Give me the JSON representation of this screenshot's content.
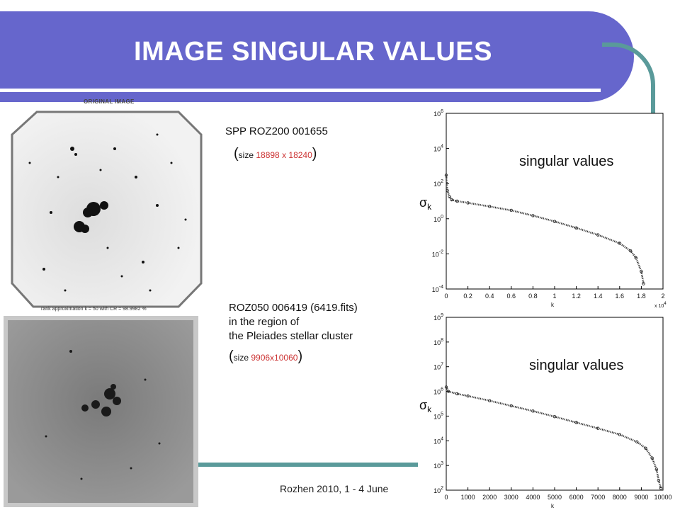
{
  "slide": {
    "title": "IMAGE SINGULAR VALUES",
    "footer": "Rozhen 2010, 1 - 4 June"
  },
  "image1": {
    "label": "ORIGINAL IMAGE",
    "caption": "rank approximation k = 50 with CR = 98.9982 %",
    "name": "SPP ROZ200 001655",
    "size_prefix": "size ",
    "size_value": "18898 x 18240"
  },
  "image2": {
    "name": "ROZ050 006419 (6419.fits)",
    "line2": "in the region of",
    "line3": "the Pleiades stellar cluster",
    "size_prefix": "size ",
    "size_value": "9906x10060"
  },
  "colors": {
    "title_bg": "#6666cc",
    "accent": "#5a9a9a",
    "size_text": "#cc3333"
  },
  "chart_data": [
    {
      "type": "scatter",
      "label": "singular values",
      "ylabel": "σk",
      "xlabel": "k",
      "x_multiplier": "x 10^4",
      "y_scale": "log",
      "xlim": [
        0,
        2
      ],
      "ylim_exp": [
        -4,
        6
      ],
      "x_ticks": [
        "0",
        "0.2",
        "0.4",
        "0.6",
        "0.8",
        "1",
        "1.2",
        "1.4",
        "1.6",
        "1.8",
        "2"
      ],
      "y_ticks": [
        "10^6",
        "10^4",
        "10^2",
        "10^0",
        "10^-2",
        "10^-4"
      ],
      "points": [
        [
          0.0,
          300
        ],
        [
          0.01,
          40
        ],
        [
          0.03,
          18
        ],
        [
          0.05,
          12
        ],
        [
          0.1,
          10
        ],
        [
          0.2,
          8
        ],
        [
          0.4,
          5
        ],
        [
          0.6,
          3
        ],
        [
          0.8,
          1.5
        ],
        [
          1.0,
          0.7
        ],
        [
          1.2,
          0.3
        ],
        [
          1.4,
          0.12
        ],
        [
          1.6,
          0.04
        ],
        [
          1.7,
          0.015
        ],
        [
          1.75,
          0.006
        ],
        [
          1.8,
          0.001
        ],
        [
          1.82,
          0.0002
        ]
      ]
    },
    {
      "type": "scatter",
      "label": "singular values",
      "ylabel": "σk",
      "xlabel": "k",
      "y_scale": "log",
      "xlim": [
        0,
        10000
      ],
      "ylim_exp": [
        2,
        9
      ],
      "x_ticks": [
        "0",
        "1000",
        "2000",
        "3000",
        "4000",
        "5000",
        "6000",
        "7000",
        "8000",
        "9000",
        "10000"
      ],
      "y_ticks": [
        "10^9",
        "10^8",
        "10^7",
        "10^6",
        "10^5",
        "10^4",
        "10^3",
        "10^2"
      ],
      "points": [
        [
          0,
          1500000
        ],
        [
          100,
          1000000
        ],
        [
          500,
          800000
        ],
        [
          1000,
          650000
        ],
        [
          2000,
          420000
        ],
        [
          3000,
          260000
        ],
        [
          4000,
          160000
        ],
        [
          5000,
          95000
        ],
        [
          6000,
          55000
        ],
        [
          7000,
          32000
        ],
        [
          8000,
          18000
        ],
        [
          8800,
          9000
        ],
        [
          9200,
          5000
        ],
        [
          9500,
          2000
        ],
        [
          9700,
          700
        ],
        [
          9800,
          250
        ],
        [
          9900,
          120
        ]
      ]
    }
  ]
}
